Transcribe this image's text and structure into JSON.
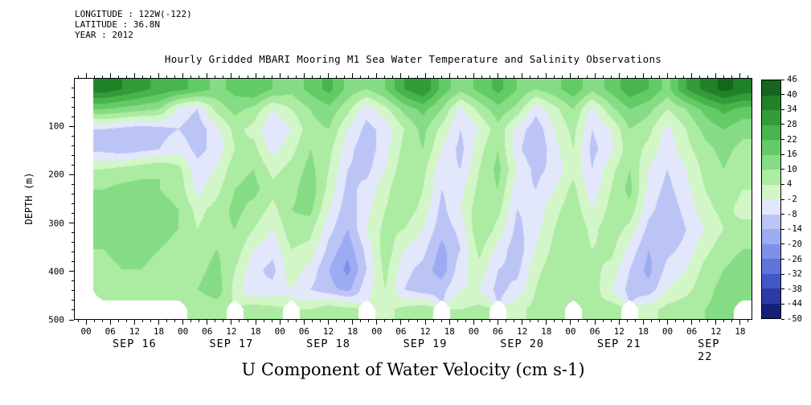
{
  "header": {
    "longitude": "LONGITUDE : 122W(-122)",
    "latitude": "LATITUDE : 36.8N",
    "year": "YEAR : 2012"
  },
  "title": "Hourly Gridded MBARI Mooring M1 Sea Water Temperature and Salinity Observations",
  "bottom_title": "U Component of Water Velocity (cm s-1)",
  "chart_data": {
    "type": "heatmap",
    "title": "Hourly Gridded MBARI Mooring M1 Sea Water Temperature and Salinity Observations",
    "xlabel": "U Component of Water Velocity (cm s-1)",
    "ylabel": "DEPTH (m)",
    "missing_color": "#ffffff",
    "y_axis": {
      "min": 0,
      "max": 500,
      "major_ticks": [
        100,
        200,
        300,
        400,
        500
      ],
      "minor_step": 20
    },
    "x_axis": {
      "total_hours": 168,
      "first_day_offset_hours": 3,
      "hour_ticks": [
        {
          "label": "00",
          "h": 0
        },
        {
          "label": "06",
          "h": 6
        },
        {
          "label": "12",
          "h": 12
        },
        {
          "label": "18",
          "h": 18
        }
      ],
      "minor_step_hours": 2,
      "days": [
        "SEP 16",
        "SEP 17",
        "SEP 18",
        "SEP 19",
        "SEP 20",
        "SEP 21",
        "SEP 22"
      ]
    },
    "colorbar": {
      "levels_low_to_high": [
        -50,
        -44,
        -38,
        -32,
        -26,
        -20,
        -14,
        -8,
        -2,
        4,
        10,
        16,
        22,
        28,
        34,
        40,
        46
      ],
      "level_step": 6,
      "tick_labels_top_to_bottom": [
        46,
        40,
        34,
        28,
        22,
        16,
        10,
        4,
        -2,
        -8,
        -14,
        -20,
        -26,
        -32,
        -38,
        -44,
        -50
      ],
      "band_colors_low_to_high": [
        "#141f7a",
        "#2c3ba3",
        "#4257c6",
        "#5f74da",
        "#7e90ea",
        "#9cacf3",
        "#bcc4f6",
        "#e2e7fb",
        "#d2f6c8",
        "#abeba2",
        "#86dc84",
        "#63cb66",
        "#47b44c",
        "#339c39",
        "#218128",
        "#15651c"
      ]
    },
    "grid": {
      "depths_m": [
        10,
        55,
        95,
        135,
        180,
        225,
        270,
        315,
        360,
        405,
        450,
        495
      ],
      "values": [
        [
          null,
          38,
          34,
          30,
          26,
          24,
          20,
          14,
          18,
          22,
          16,
          12,
          18,
          24,
          14,
          10,
          16,
          28,
          34,
          20,
          12,
          18,
          24,
          16,
          10,
          14,
          20,
          12,
          18,
          26,
          22,
          14,
          28,
          36,
          42,
          38
        ],
        [
          null,
          16,
          14,
          12,
          10,
          -4,
          -8,
          6,
          12,
          8,
          -2,
          4,
          10,
          14,
          6,
          -6,
          2,
          12,
          18,
          10,
          -4,
          6,
          14,
          8,
          -6,
          2,
          10,
          -4,
          8,
          16,
          12,
          4,
          10,
          18,
          24,
          20
        ],
        [
          null,
          -8,
          -10,
          -12,
          -10,
          -8,
          -12,
          -4,
          6,
          2,
          -8,
          -2,
          8,
          10,
          -2,
          -10,
          -6,
          4,
          12,
          2,
          -8,
          -2,
          8,
          -4,
          -12,
          -2,
          6,
          -8,
          -2,
          10,
          6,
          -4,
          4,
          12,
          16,
          12
        ],
        [
          null,
          -10,
          -12,
          -10,
          -8,
          -4,
          -10,
          -6,
          4,
          6,
          -4,
          2,
          10,
          6,
          -6,
          -12,
          -4,
          6,
          10,
          -2,
          -10,
          2,
          10,
          -6,
          -14,
          -4,
          4,
          -10,
          -4,
          8,
          2,
          -6,
          2,
          8,
          12,
          8
        ],
        [
          null,
          4,
          6,
          8,
          10,
          6,
          -6,
          -2,
          8,
          10,
          2,
          6,
          12,
          4,
          -8,
          -10,
          -2,
          8,
          6,
          -6,
          -8,
          4,
          12,
          -2,
          -10,
          -6,
          2,
          -8,
          2,
          10,
          -2,
          -8,
          -2,
          6,
          10,
          6
        ],
        [
          null,
          10,
          12,
          12,
          10,
          8,
          -4,
          2,
          10,
          12,
          6,
          8,
          14,
          2,
          -10,
          -6,
          2,
          10,
          4,
          -8,
          -4,
          6,
          10,
          -6,
          -8,
          -2,
          6,
          -6,
          4,
          12,
          -4,
          -10,
          -4,
          4,
          8,
          4
        ],
        [
          null,
          12,
          14,
          14,
          12,
          10,
          2,
          6,
          12,
          8,
          2,
          10,
          12,
          -2,
          -12,
          -4,
          4,
          8,
          2,
          -10,
          -2,
          8,
          6,
          -8,
          -6,
          2,
          8,
          -2,
          6,
          8,
          -6,
          -12,
          -6,
          2,
          6,
          2
        ],
        [
          null,
          12,
          14,
          12,
          12,
          10,
          4,
          8,
          10,
          4,
          -2,
          8,
          6,
          -6,
          -14,
          -2,
          6,
          4,
          -2,
          -12,
          -6,
          10,
          2,
          -10,
          -4,
          4,
          10,
          2,
          8,
          2,
          -10,
          -14,
          -8,
          -2,
          4,
          6
        ],
        [
          null,
          10,
          12,
          12,
          10,
          8,
          6,
          10,
          8,
          -2,
          -6,
          4,
          2,
          -10,
          -18,
          -6,
          8,
          -2,
          -6,
          -16,
          -8,
          6,
          -4,
          -12,
          -2,
          6,
          8,
          4,
          6,
          -4,
          -14,
          -10,
          -6,
          2,
          8,
          10
        ],
        [
          null,
          8,
          10,
          10,
          8,
          8,
          8,
          12,
          4,
          -6,
          -10,
          2,
          -4,
          -14,
          -22,
          -8,
          6,
          -6,
          -10,
          -18,
          -4,
          2,
          -8,
          -10,
          2,
          8,
          6,
          6,
          2,
          -8,
          -16,
          -6,
          -2,
          6,
          10,
          12
        ],
        [
          null,
          6,
          8,
          8,
          8,
          6,
          10,
          14,
          2,
          -8,
          -6,
          -2,
          -8,
          -12,
          -16,
          -4,
          4,
          -8,
          -12,
          -10,
          -2,
          -2,
          -10,
          -6,
          4,
          10,
          4,
          8,
          -2,
          -10,
          -12,
          -2,
          2,
          8,
          12,
          14
        ],
        [
          null,
          null,
          null,
          null,
          null,
          null,
          4,
          6,
          null,
          8,
          6,
          null,
          4,
          8,
          6,
          null,
          2,
          6,
          8,
          null,
          4,
          6,
          null,
          2,
          6,
          8,
          null,
          4,
          8,
          null,
          2,
          6,
          8,
          10,
          12,
          null
        ]
      ]
    }
  }
}
